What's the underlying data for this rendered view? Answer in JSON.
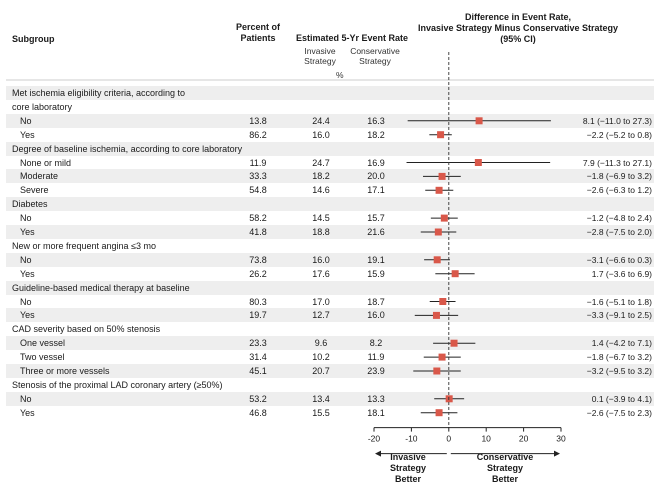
{
  "header": {
    "subgroup": "Subgroup",
    "percent_line1": "Percent of",
    "percent_line2": "Patients",
    "rate_title": "Estimated 5-Yr Event Rate",
    "invasive_l1": "Invasive",
    "invasive_l2": "Strategy",
    "conservative_l1": "Conservative",
    "conservative_l2": "Strategy",
    "rate_unit": "%",
    "diff_l1": "Difference in Event Rate,",
    "diff_l2": "Invasive Strategy Minus Conservative Strategy",
    "diff_l3": "(95% CI)"
  },
  "footer": {
    "left_l1": "Invasive",
    "left_l2": "Strategy",
    "left_l3": "Better",
    "right_l1": "Conservative",
    "right_l2": "Strategy",
    "right_l3": "Better"
  },
  "colors": {
    "marker": "#d9584a",
    "band": "#eeeeee",
    "line": "#222222"
  },
  "chart_data": {
    "type": "forest",
    "title": "Difference in Event Rate, Invasive Strategy Minus Conservative Strategy (95% CI)",
    "xlim": [
      -20,
      30
    ],
    "xticks": [
      -20,
      -10,
      0,
      10,
      20,
      30
    ],
    "reference_line": 0,
    "rows": [
      {
        "kind": "group",
        "label": "Met ischemia eligibility criteria, according to"
      },
      {
        "kind": "group",
        "label": "core laboratory"
      },
      {
        "kind": "sub",
        "label": "No",
        "pct": "13.8",
        "inv": "24.4",
        "con": "16.3",
        "est": 8.1,
        "lo": -11.0,
        "hi": 27.3,
        "ci": "8.1 (−11.0 to 27.3)"
      },
      {
        "kind": "sub",
        "label": "Yes",
        "pct": "86.2",
        "inv": "16.0",
        "con": "18.2",
        "est": -2.2,
        "lo": -5.2,
        "hi": 0.8,
        "ci": "−2.2 (−5.2 to 0.8)"
      },
      {
        "kind": "group",
        "label": "Degree of baseline ischemia, according to core laboratory"
      },
      {
        "kind": "sub",
        "label": "None or mild",
        "pct": "11.9",
        "inv": "24.7",
        "con": "16.9",
        "est": 7.9,
        "lo": -11.3,
        "hi": 27.1,
        "ci": "7.9 (−11.3 to 27.1)"
      },
      {
        "kind": "sub",
        "label": "Moderate",
        "pct": "33.3",
        "inv": "18.2",
        "con": "20.0",
        "est": -1.8,
        "lo": -6.9,
        "hi": 3.2,
        "ci": "−1.8 (−6.9 to 3.2)"
      },
      {
        "kind": "sub",
        "label": "Severe",
        "pct": "54.8",
        "inv": "14.6",
        "con": "17.1",
        "est": -2.6,
        "lo": -6.3,
        "hi": 1.2,
        "ci": "−2.6 (−6.3 to 1.2)"
      },
      {
        "kind": "group",
        "label": "Diabetes"
      },
      {
        "kind": "sub",
        "label": "No",
        "pct": "58.2",
        "inv": "14.5",
        "con": "15.7",
        "est": -1.2,
        "lo": -4.8,
        "hi": 2.4,
        "ci": "−1.2 (−4.8 to 2.4)"
      },
      {
        "kind": "sub",
        "label": "Yes",
        "pct": "41.8",
        "inv": "18.8",
        "con": "21.6",
        "est": -2.8,
        "lo": -7.5,
        "hi": 2.0,
        "ci": "−2.8 (−7.5 to 2.0)"
      },
      {
        "kind": "group",
        "label": "New or more frequent angina ≤3 mo"
      },
      {
        "kind": "sub",
        "label": "No",
        "pct": "73.8",
        "inv": "16.0",
        "con": "19.1",
        "est": -3.1,
        "lo": -6.6,
        "hi": 0.3,
        "ci": "−3.1 (−6.6 to 0.3)"
      },
      {
        "kind": "sub",
        "label": "Yes",
        "pct": "26.2",
        "inv": "17.6",
        "con": "15.9",
        "est": 1.7,
        "lo": -3.6,
        "hi": 6.9,
        "ci": "1.7 (−3.6 to 6.9)"
      },
      {
        "kind": "group",
        "label": "Guideline-based medical therapy at baseline"
      },
      {
        "kind": "sub",
        "label": "No",
        "pct": "80.3",
        "inv": "17.0",
        "con": "18.7",
        "est": -1.6,
        "lo": -5.1,
        "hi": 1.8,
        "ci": "−1.6 (−5.1 to 1.8)"
      },
      {
        "kind": "sub",
        "label": "Yes",
        "pct": "19.7",
        "inv": "12.7",
        "con": "16.0",
        "est": -3.3,
        "lo": -9.1,
        "hi": 2.5,
        "ci": "−3.3 (−9.1 to 2.5)"
      },
      {
        "kind": "group",
        "label": "CAD severity based on 50% stenosis"
      },
      {
        "kind": "sub",
        "label": "One vessel",
        "pct": "23.3",
        "inv": "9.6",
        "con": "8.2",
        "est": 1.4,
        "lo": -4.2,
        "hi": 7.1,
        "ci": "1.4 (−4.2 to 7.1)"
      },
      {
        "kind": "sub",
        "label": "Two vessel",
        "pct": "31.4",
        "inv": "10.2",
        "con": "11.9",
        "est": -1.8,
        "lo": -6.7,
        "hi": 3.2,
        "ci": "−1.8 (−6.7 to 3.2)"
      },
      {
        "kind": "sub",
        "label": "Three or more vessels",
        "pct": "45.1",
        "inv": "20.7",
        "con": "23.9",
        "est": -3.2,
        "lo": -9.5,
        "hi": 3.2,
        "ci": "−3.2 (−9.5 to 3.2)"
      },
      {
        "kind": "group",
        "label": "Stenosis of the proximal LAD coronary artery (≥50%)"
      },
      {
        "kind": "sub",
        "label": "No",
        "pct": "53.2",
        "inv": "13.4",
        "con": "13.3",
        "est": 0.1,
        "lo": -3.9,
        "hi": 4.1,
        "ci": "0.1 (−3.9 to 4.1)"
      },
      {
        "kind": "sub",
        "label": "Yes",
        "pct": "46.8",
        "inv": "15.5",
        "con": "18.1",
        "est": -2.6,
        "lo": -7.5,
        "hi": 2.3,
        "ci": "−2.6 (−7.5 to 2.3)"
      }
    ]
  }
}
